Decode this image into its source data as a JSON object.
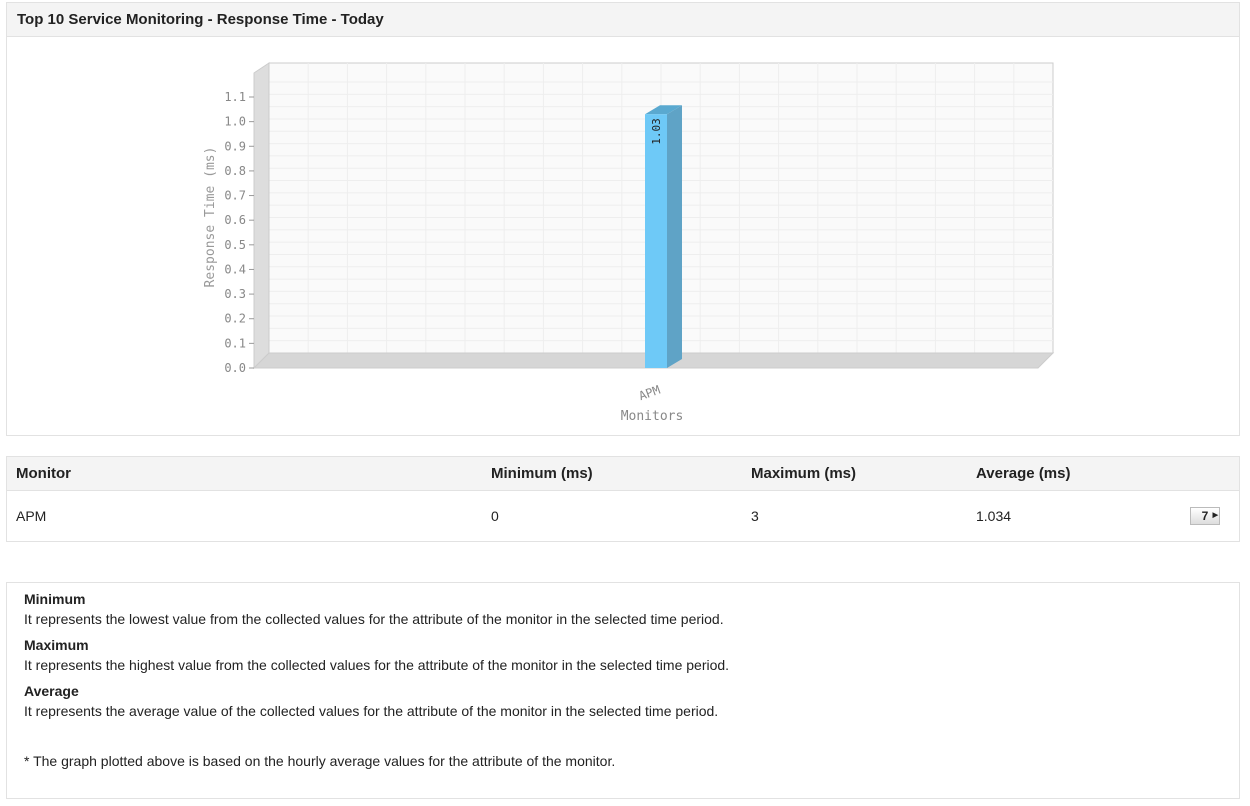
{
  "panel_title": "Top 10 Service Monitoring - Response Time - Today",
  "chart_data": {
    "type": "bar",
    "categories": [
      "APM"
    ],
    "values": [
      1.03
    ],
    "data_labels": [
      "1.03"
    ],
    "xlabel": "Monitors",
    "ylabel": "Response Time (ms)",
    "ylim": [
      0,
      1.1
    ],
    "yticks": [
      "0.0",
      "0.1",
      "0.2",
      "0.3",
      "0.4",
      "0.5",
      "0.6",
      "0.7",
      "0.8",
      "0.9",
      "1.0",
      "1.1"
    ],
    "grid": true,
    "style": "3d",
    "bar_color": "#6ec9f7"
  },
  "table": {
    "headers": [
      "Monitor",
      "Minimum (ms)",
      "Maximum (ms)",
      "Average (ms)"
    ],
    "rows": [
      {
        "monitor": "APM",
        "min": "0",
        "max": "3",
        "avg": "1.034",
        "action": "7"
      }
    ]
  },
  "notes": [
    {
      "title": "Minimum",
      "text": "It represents the lowest value from the collected values for the attribute of the monitor in the selected time period."
    },
    {
      "title": "Maximum",
      "text": "It represents the highest value from the collected values for the attribute of the monitor in the selected time period."
    },
    {
      "title": "Average",
      "text": "It represents the average value of the collected values for the attribute of the monitor in the selected time period."
    }
  ],
  "footnote": "* The graph plotted above is based on the hourly average values for the attribute of the monitor."
}
